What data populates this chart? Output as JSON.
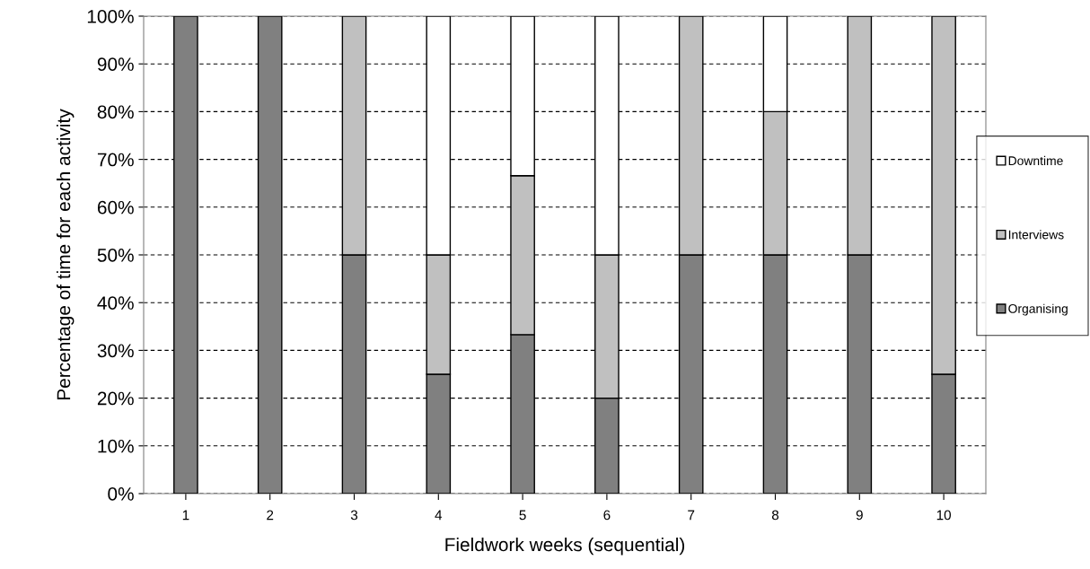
{
  "chart_data": {
    "type": "bar",
    "stacked": true,
    "xlabel": "Fieldwork weeks (sequential)",
    "ylabel": "Percentage of time for each activity",
    "categories": [
      "1",
      "2",
      "3",
      "4",
      "5",
      "6",
      "7",
      "8",
      "9",
      "10"
    ],
    "series": [
      {
        "name": "Organising",
        "color": "#808080",
        "values": [
          100,
          100,
          50,
          25,
          33.3,
          20,
          50,
          50,
          50,
          25
        ]
      },
      {
        "name": "Interviews",
        "color": "#c0c0c0",
        "values": [
          0,
          0,
          50,
          25,
          33.3,
          30,
          50,
          30,
          50,
          75
        ]
      },
      {
        "name": "Downtime",
        "color": "#ffffff",
        "values": [
          0,
          0,
          0,
          50,
          33.4,
          50,
          0,
          20,
          0,
          0
        ]
      }
    ],
    "ylim": [
      0,
      100
    ],
    "yticks": [
      {
        "value": 0,
        "label": "0%"
      },
      {
        "value": 10,
        "label": "10%"
      },
      {
        "value": 20,
        "label": "20%"
      },
      {
        "value": 30,
        "label": "30%"
      },
      {
        "value": 40,
        "label": "40%"
      },
      {
        "value": 50,
        "label": "50%"
      },
      {
        "value": 60,
        "label": "60%"
      },
      {
        "value": 70,
        "label": "70%"
      },
      {
        "value": 80,
        "label": "80%"
      },
      {
        "value": 90,
        "label": "90%"
      },
      {
        "value": 100,
        "label": "100%"
      }
    ],
    "grid": "y",
    "legend": "right"
  }
}
